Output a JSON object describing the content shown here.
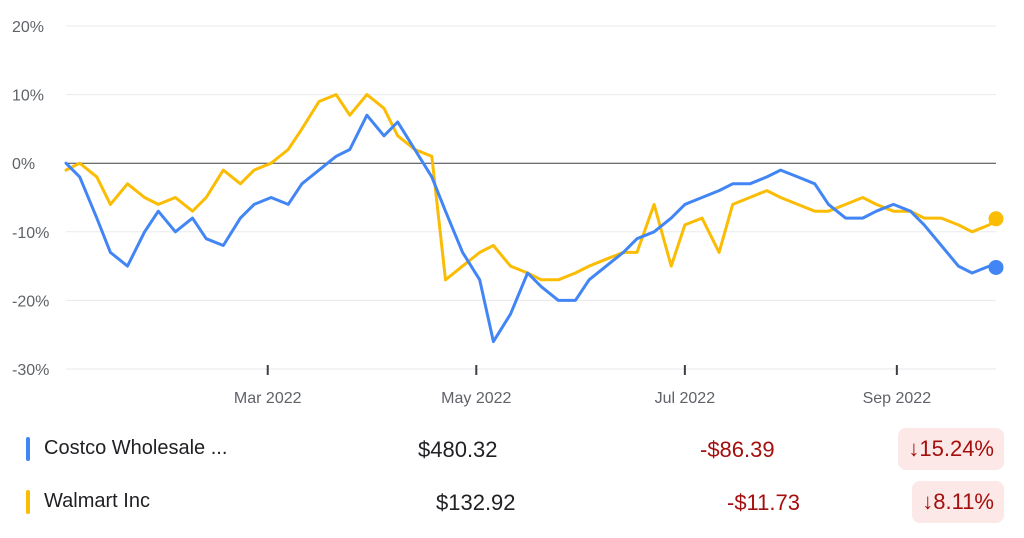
{
  "chart_data": {
    "type": "line",
    "title": "",
    "xlabel": "",
    "ylabel": "",
    "ylim": [
      -30,
      20
    ],
    "y_ticks": [
      20,
      10,
      0,
      -10,
      -20,
      -30
    ],
    "y_tick_labels": [
      "20%",
      "10%",
      "0%",
      "-10%",
      "-20%",
      "-30%"
    ],
    "x_ticks": [
      "2022-03-01",
      "2022-05-01",
      "2022-07-01",
      "2022-09-01"
    ],
    "x_tick_labels": [
      "Mar 2022",
      "May 2022",
      "Jul 2022",
      "Sep 2022"
    ],
    "xlim": [
      "2022-01-01",
      "2022-09-30"
    ],
    "grid": true,
    "baseline": 0,
    "series": [
      {
        "name": "Costco Wholesale ...",
        "color": "#4285f4",
        "x": [
          "2022-01-01",
          "2022-01-05",
          "2022-01-10",
          "2022-01-14",
          "2022-01-19",
          "2022-01-24",
          "2022-01-28",
          "2022-02-02",
          "2022-02-07",
          "2022-02-11",
          "2022-02-16",
          "2022-02-21",
          "2022-02-25",
          "2022-03-02",
          "2022-03-07",
          "2022-03-11",
          "2022-03-16",
          "2022-03-21",
          "2022-03-25",
          "2022-03-30",
          "2022-04-04",
          "2022-04-08",
          "2022-04-13",
          "2022-04-18",
          "2022-04-22",
          "2022-04-27",
          "2022-05-02",
          "2022-05-06",
          "2022-05-11",
          "2022-05-16",
          "2022-05-20",
          "2022-05-25",
          "2022-05-30",
          "2022-06-03",
          "2022-06-08",
          "2022-06-13",
          "2022-06-17",
          "2022-06-22",
          "2022-06-27",
          "2022-07-01",
          "2022-07-06",
          "2022-07-11",
          "2022-07-15",
          "2022-07-20",
          "2022-07-25",
          "2022-07-29",
          "2022-08-03",
          "2022-08-08",
          "2022-08-12",
          "2022-08-17",
          "2022-08-22",
          "2022-08-26",
          "2022-08-31",
          "2022-09-05",
          "2022-09-09",
          "2022-09-14",
          "2022-09-19",
          "2022-09-23",
          "2022-09-28",
          "2022-09-30"
        ],
        "y": [
          0,
          -2,
          -8,
          -13,
          -15,
          -10,
          -7,
          -10,
          -8,
          -11,
          -12,
          -8,
          -6,
          -5,
          -6,
          -3,
          -1,
          1,
          2,
          7,
          4,
          6,
          2,
          -2,
          -7,
          -13,
          -17,
          -26,
          -22,
          -16,
          -18,
          -20,
          -20,
          -17,
          -15,
          -13,
          -11,
          -10,
          -8,
          -6,
          -5,
          -4,
          -3,
          -3,
          -2,
          -1,
          -2,
          -3,
          -6,
          -8,
          -8,
          -7,
          -6,
          -7,
          -9,
          -12,
          -15,
          -16,
          -15,
          -15.2
        ]
      },
      {
        "name": "Walmart Inc",
        "color": "#fbbc04",
        "x": [
          "2022-01-01",
          "2022-01-05",
          "2022-01-10",
          "2022-01-14",
          "2022-01-19",
          "2022-01-24",
          "2022-01-28",
          "2022-02-02",
          "2022-02-07",
          "2022-02-11",
          "2022-02-16",
          "2022-02-21",
          "2022-02-25",
          "2022-03-02",
          "2022-03-07",
          "2022-03-11",
          "2022-03-16",
          "2022-03-21",
          "2022-03-25",
          "2022-03-30",
          "2022-04-04",
          "2022-04-08",
          "2022-04-13",
          "2022-04-18",
          "2022-04-22",
          "2022-04-27",
          "2022-05-02",
          "2022-05-06",
          "2022-05-11",
          "2022-05-16",
          "2022-05-20",
          "2022-05-25",
          "2022-05-30",
          "2022-06-03",
          "2022-06-08",
          "2022-06-13",
          "2022-06-17",
          "2022-06-22",
          "2022-06-27",
          "2022-07-01",
          "2022-07-06",
          "2022-07-11",
          "2022-07-15",
          "2022-07-20",
          "2022-07-25",
          "2022-07-29",
          "2022-08-03",
          "2022-08-08",
          "2022-08-12",
          "2022-08-17",
          "2022-08-22",
          "2022-08-26",
          "2022-08-31",
          "2022-09-05",
          "2022-09-09",
          "2022-09-14",
          "2022-09-19",
          "2022-09-23",
          "2022-09-28",
          "2022-09-30"
        ],
        "y": [
          -1,
          0,
          -2,
          -6,
          -3,
          -5,
          -6,
          -5,
          -7,
          -5,
          -1,
          -3,
          -1,
          0,
          2,
          5,
          9,
          10,
          7,
          10,
          8,
          4,
          2,
          1,
          -17,
          -15,
          -13,
          -12,
          -15,
          -16,
          -17,
          -17,
          -16,
          -15,
          -14,
          -13,
          -13,
          -6,
          -15,
          -9,
          -8,
          -13,
          -6,
          -5,
          -4,
          -5,
          -6,
          -7,
          -7,
          -6,
          -5,
          -6,
          -7,
          -7,
          -8,
          -8,
          -9,
          -10,
          -9,
          -8.1
        ]
      }
    ]
  },
  "legend": [
    {
      "name": "Costco Wholesale ...",
      "color": "#4285f4",
      "price": "$480.32",
      "change": "-$86.39",
      "percent": "↓15.24%"
    },
    {
      "name": "Walmart Inc",
      "color": "#fbbc04",
      "price": "$132.92",
      "change": "-$11.73",
      "percent": "↓8.11%"
    }
  ]
}
